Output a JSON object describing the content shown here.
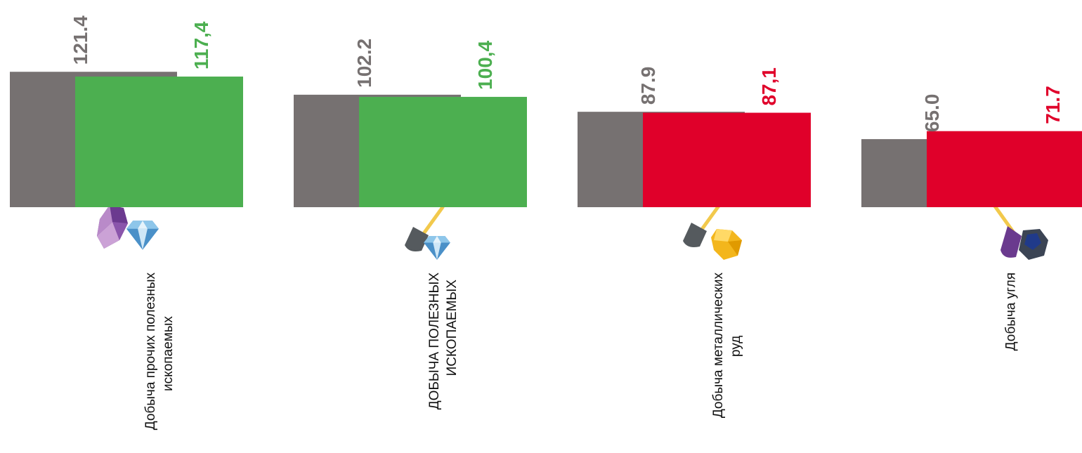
{
  "chart_data": {
    "type": "bar",
    "categories": [
      [
        "Добыча прочих полезных",
        "ископаемых"
      ],
      [
        "ДОБЫЧА ПОЛЕЗНЫХ",
        "ИСКОПАЕМЫХ"
      ],
      [
        "Добыча металлических",
        "руд"
      ],
      [
        "Добыча угля"
      ]
    ],
    "series": [
      {
        "values": [
          121.4,
          102.2,
          87.9,
          65.0
        ],
        "labels": [
          "121.4",
          "102.2",
          "87.9",
          "65.0"
        ],
        "color": "#767171"
      },
      {
        "values": [
          117.4,
          100.4,
          87.1,
          71.7
        ],
        "labels": [
          "117,4",
          "100,4",
          "87,1",
          "71.7"
        ],
        "colors": [
          "#4caf50",
          "#4caf50",
          "#e0002a",
          "#e0002a"
        ]
      }
    ],
    "icons": [
      "gem-cluster-icon",
      "shovel-diamond-icon",
      "shovel-gold-ore-icon",
      "shovel-coal-icon"
    ],
    "label_colors": {
      "gray": "#767171",
      "green": "#4caf50",
      "red": "#e0002a"
    }
  }
}
